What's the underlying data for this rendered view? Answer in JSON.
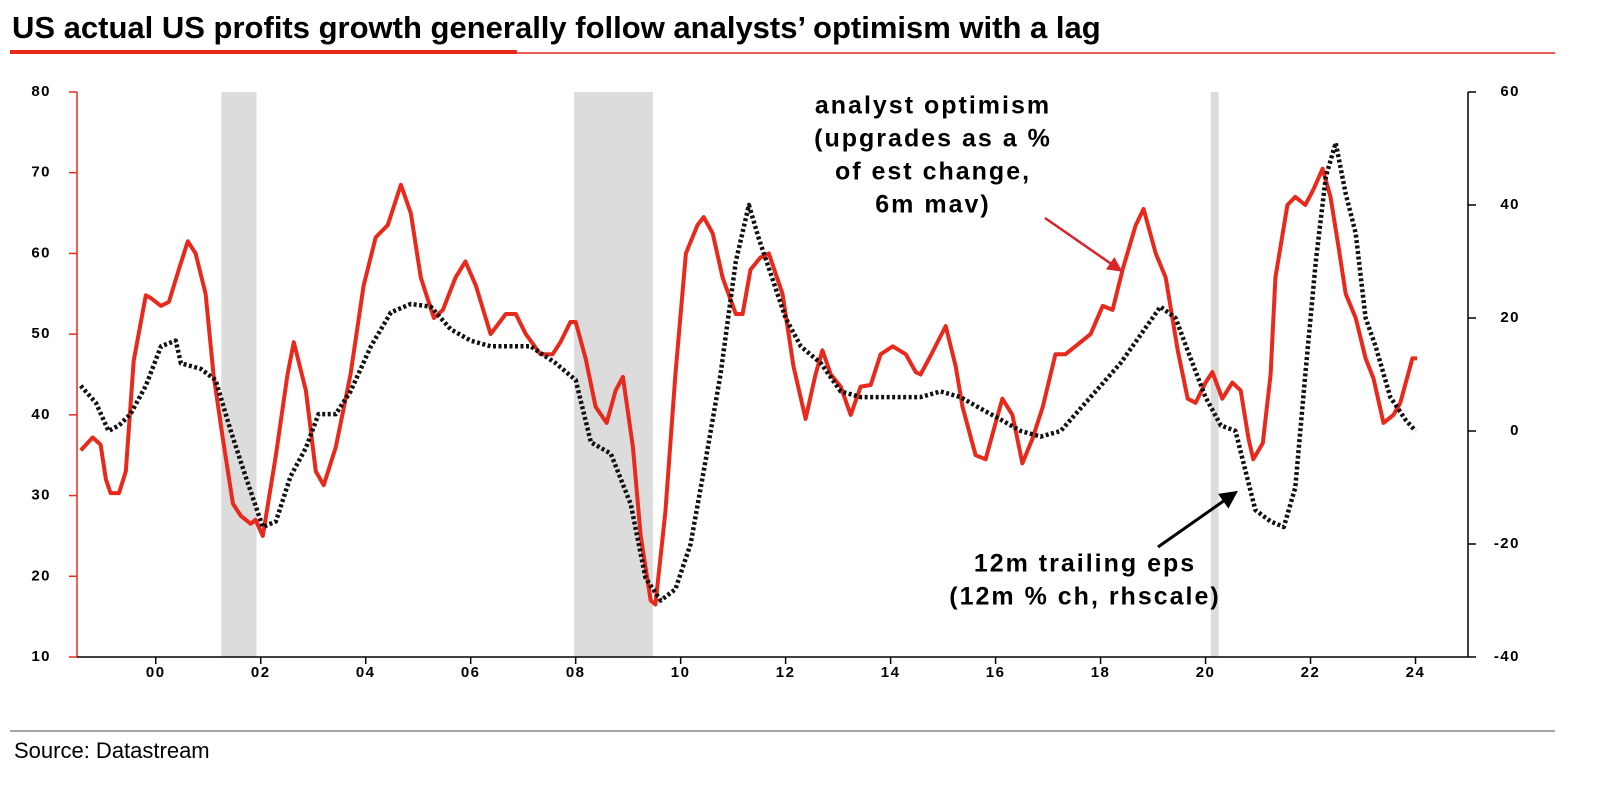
{
  "chart_data": {
    "type": "line",
    "title": "US actual US profits growth generally follow analysts’ optimism with a lag",
    "source": "Source: Datastream",
    "xlim": [
      1998.5,
      2025.0
    ],
    "xticks": [
      {
        "value": 2000,
        "label": "00"
      },
      {
        "value": 2002,
        "label": "02"
      },
      {
        "value": 2004,
        "label": "04"
      },
      {
        "value": 2006,
        "label": "06"
      },
      {
        "value": 2008,
        "label": "08"
      },
      {
        "value": 2010,
        "label": "10"
      },
      {
        "value": 2012,
        "label": "12"
      },
      {
        "value": 2014,
        "label": "14"
      },
      {
        "value": 2016,
        "label": "16"
      },
      {
        "value": 2018,
        "label": "18"
      },
      {
        "value": 2020,
        "label": "20"
      },
      {
        "value": 2022,
        "label": "22"
      },
      {
        "value": 2024,
        "label": "24"
      }
    ],
    "ylim": [
      10,
      80
    ],
    "yticks": [
      10,
      20,
      30,
      40,
      50,
      60,
      70,
      80
    ],
    "y2lim": [
      -40,
      60
    ],
    "y2ticks": [
      -40,
      -20,
      0,
      20,
      40,
      60
    ],
    "recessions": [
      [
        2001.25,
        2001.92
      ],
      [
        2007.97,
        2009.47
      ],
      [
        2020.1,
        2020.25
      ]
    ],
    "annotations": [
      {
        "lines": [
          "analyst optimism",
          "(upgrades as a %",
          "of est change,",
          "6m mav)"
        ]
      },
      {
        "lines": [
          "12m trailing eps",
          "(12m % ch, rhscale)"
        ]
      }
    ],
    "series": [
      {
        "color": "#e8291c",
        "axis": "y",
        "style": "solid",
        "x": [
          1998.57,
          1998.8,
          1998.95,
          1999.05,
          1999.14,
          1999.3,
          1999.43,
          1999.58,
          1999.81,
          1999.9,
          2000.1,
          2000.25,
          2000.44,
          2000.61,
          2000.76,
          2000.95,
          2001.1,
          2001.28,
          2001.47,
          2001.62,
          2001.81,
          2001.9,
          2002.04,
          2002.29,
          2002.51,
          2002.63,
          2002.86,
          2003.05,
          2003.2,
          2003.43,
          2003.71,
          2003.96,
          2004.19,
          2004.42,
          2004.67,
          2004.86,
          2005.05,
          2005.3,
          2005.47,
          2005.71,
          2005.9,
          2006.1,
          2006.38,
          2006.67,
          2006.86,
          2007.05,
          2007.33,
          2007.56,
          2007.71,
          2007.9,
          2008.0,
          2008.19,
          2008.38,
          2008.59,
          2008.76,
          2008.9,
          2009.09,
          2009.24,
          2009.43,
          2009.52,
          2009.71,
          2009.9,
          2010.1,
          2010.32,
          2010.44,
          2010.61,
          2010.8,
          2011.05,
          2011.18,
          2011.33,
          2011.52,
          2011.68,
          2011.94,
          2012.15,
          2012.38,
          2012.57,
          2012.7,
          2012.86,
          2013.05,
          2013.24,
          2013.43,
          2013.62,
          2013.81,
          2014.04,
          2014.29,
          2014.48,
          2014.57,
          2014.76,
          2015.05,
          2015.24,
          2015.37,
          2015.62,
          2015.81,
          2016.0,
          2016.13,
          2016.32,
          2016.51,
          2016.7,
          2016.9,
          2017.14,
          2017.33,
          2017.52,
          2017.81,
          2018.04,
          2018.23,
          2018.42,
          2018.67,
          2018.82,
          2019.05,
          2019.24,
          2019.47,
          2019.66,
          2019.81,
          2020.0,
          2020.13,
          2020.32,
          2020.51,
          2020.67,
          2020.82,
          2020.91,
          2021.09,
          2021.24,
          2021.33,
          2021.56,
          2021.71,
          2021.9,
          2022.06,
          2022.23,
          2022.38,
          2022.53,
          2022.67,
          2022.86,
          2023.05,
          2023.2,
          2023.39,
          2023.58,
          2023.71,
          2023.94,
          2024.03
        ],
        "values": [
          35.6,
          37.2,
          36.3,
          32,
          30.3,
          30.3,
          33,
          46.7,
          54.8,
          54.5,
          53.5,
          54,
          58,
          61.5,
          60,
          55,
          45,
          37,
          29,
          27.5,
          26.5,
          27,
          25,
          35,
          45,
          49,
          43,
          33,
          31.3,
          36,
          45,
          56,
          62,
          63.5,
          68.5,
          65,
          57,
          52,
          53,
          57,
          59,
          56,
          50,
          52.5,
          52.5,
          50,
          47.5,
          47.5,
          49,
          51.5,
          51.5,
          47,
          41,
          39,
          43,
          44.7,
          36,
          25,
          17,
          16.5,
          28,
          45,
          60,
          63.5,
          64.5,
          62.5,
          57,
          52.5,
          52.5,
          58,
          59.5,
          60,
          55,
          46,
          39.5,
          45,
          48,
          45,
          43.5,
          40,
          43.5,
          43.7,
          47.5,
          48.5,
          47.5,
          45.3,
          45,
          47.3,
          51,
          46,
          41,
          35,
          34.5,
          39,
          42,
          40,
          34,
          37,
          41,
          47.5,
          47.5,
          48.5,
          50,
          53.5,
          53,
          58,
          63.5,
          65.5,
          60,
          57,
          48,
          42,
          41.5,
          44,
          45.3,
          42,
          44,
          43,
          37,
          34.5,
          36.5,
          45,
          57,
          66,
          67,
          66,
          68,
          70.5,
          67,
          61,
          55,
          52,
          47,
          44.5,
          39,
          40,
          41.5,
          47,
          47
        ]
      },
      {
        "color": "#111111",
        "axis": "y2",
        "style": "dotted",
        "x": [
          1998.57,
          1998.86,
          1999.1,
          1999.3,
          1999.52,
          1999.81,
          2000.1,
          2000.38,
          2000.48,
          2000.86,
          2001.14,
          2001.43,
          2001.71,
          2002.04,
          2002.29,
          2002.57,
          2002.86,
          2003.1,
          2003.43,
          2003.71,
          2004.1,
          2004.48,
          2004.86,
          2005.24,
          2005.62,
          2006.0,
          2006.38,
          2006.76,
          2007.14,
          2007.62,
          2008.0,
          2008.29,
          2008.67,
          2009.05,
          2009.33,
          2009.62,
          2009.9,
          2010.19,
          2010.48,
          2010.76,
          2011.05,
          2011.3,
          2011.49,
          2011.71,
          2012.0,
          2012.29,
          2012.67,
          2013.05,
          2013.43,
          2013.81,
          2014.19,
          2014.57,
          2014.95,
          2015.33,
          2015.71,
          2016.1,
          2016.48,
          2016.86,
          2017.24,
          2017.62,
          2018.0,
          2018.38,
          2018.76,
          2019.14,
          2019.43,
          2019.71,
          2020.0,
          2020.29,
          2020.57,
          2020.76,
          2020.95,
          2021.24,
          2021.49,
          2021.71,
          2021.9,
          2022.1,
          2022.29,
          2022.48,
          2022.67,
          2022.86,
          2023.05,
          2023.24,
          2023.52,
          2023.81,
          2024.0
        ],
        "values": [
          8,
          5,
          0,
          1,
          3,
          8,
          15,
          16,
          12,
          11,
          9,
          0,
          -8,
          -17,
          -16,
          -8,
          -3,
          3,
          3,
          7,
          15,
          21,
          22.5,
          22,
          18,
          16,
          15,
          15,
          15,
          12,
          9,
          -2,
          -4,
          -13,
          -26,
          -30,
          -28,
          -20,
          -5,
          10,
          30,
          40,
          34,
          28,
          20,
          15,
          12,
          7,
          6,
          6,
          6,
          6,
          7,
          6,
          4,
          2,
          0,
          -1,
          0,
          4,
          8,
          12,
          17,
          22,
          20,
          13,
          6,
          1,
          0,
          -7,
          -14,
          -16,
          -17,
          -10,
          10,
          30,
          45,
          51,
          42,
          35,
          20,
          15,
          6,
          2,
          0
        ]
      }
    ]
  }
}
